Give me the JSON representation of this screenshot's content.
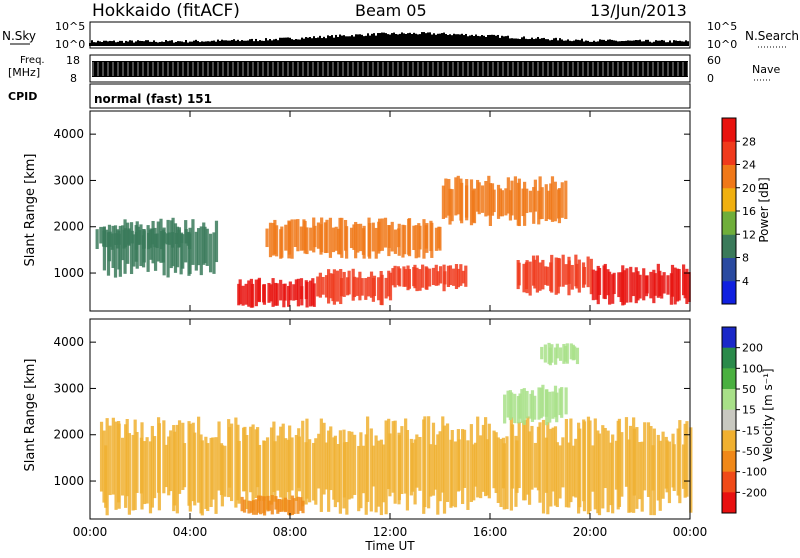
{
  "header": {
    "site": "Hokkaido (fitACF)",
    "beam": "Beam 05",
    "date": "13/Jun/2013"
  },
  "top_panels": {
    "nsky_label": "N.Sky",
    "nsky_ticks": [
      "10^5",
      "10^0"
    ],
    "nsearch_label": "N.Search",
    "nsearch_ticks": [
      "10^5",
      "10^0"
    ],
    "freq_label": "Freq.",
    "freq_unit": "[MHz]",
    "freq_ticks": [
      "18",
      "8"
    ],
    "nave_label": "Nave",
    "nave_ticks": [
      "60",
      "0"
    ],
    "cpid_label": "CPID",
    "cpid_text": "normal (fast) 151"
  },
  "chart_data": [
    {
      "type": "heatmap",
      "panel": "power",
      "ylabel": "Slant Range [km]",
      "yticks": [
        1000,
        2000,
        3000,
        4000
      ],
      "ylim": [
        180,
        4500
      ],
      "xticks": [
        "00:00",
        "04:00",
        "08:00",
        "12:00",
        "16:00",
        "20:00",
        "00:00"
      ],
      "xlim_hours": [
        0,
        24
      ],
      "colorbar": {
        "label": "Power [dB]",
        "ticks": [
          "4",
          "8",
          "12",
          "16",
          "20",
          "24",
          "28"
        ],
        "range": [
          0,
          30
        ],
        "colors": [
          "#1020e0",
          "#2a4aa0",
          "#3a7a5a",
          "#6fae3a",
          "#f0b010",
          "#f07818",
          "#f03a1c",
          "#e8120e"
        ]
      },
      "regions": [
        {
          "t": [
            5.8,
            9.0
          ],
          "r": [
            250,
            900
          ],
          "level": 28
        },
        {
          "t": [
            9.0,
            12.0
          ],
          "r": [
            300,
            1100
          ],
          "level": 26
        },
        {
          "t": [
            12.0,
            15.0
          ],
          "r": [
            600,
            1200
          ],
          "level": 24
        },
        {
          "t": [
            17.0,
            20.0
          ],
          "r": [
            500,
            1400
          ],
          "level": 26
        },
        {
          "t": [
            20.0,
            24.0
          ],
          "r": [
            300,
            1200
          ],
          "level": 28
        },
        {
          "t": [
            7.0,
            14.0
          ],
          "r": [
            1300,
            2200
          ],
          "level": 22
        },
        {
          "t": [
            14.0,
            19.0
          ],
          "r": [
            2000,
            3100
          ],
          "level": 22
        },
        {
          "t": [
            0.5,
            5.0
          ],
          "r": [
            900,
            2200
          ],
          "level": 10
        },
        {
          "t": [
            0.2,
            4.0
          ],
          "r": [
            1500,
            2000
          ],
          "level": 8
        }
      ]
    },
    {
      "type": "heatmap",
      "panel": "velocity",
      "ylabel": "Slant Range [km]",
      "yticks": [
        1000,
        2000,
        3000,
        4000
      ],
      "ylim": [
        180,
        4500
      ],
      "xticks": [
        "00:00",
        "04:00",
        "08:00",
        "12:00",
        "16:00",
        "20:00",
        "00:00"
      ],
      "xlabel": "Time UT",
      "xlim_hours": [
        0,
        24
      ],
      "colorbar": {
        "label": "Velocity [m s⁻¹]",
        "ticks": [
          "200",
          "100",
          "50",
          "15",
          "-15",
          "-50",
          "-100",
          "-200"
        ],
        "colors": [
          "#1a28c8",
          "#2a8a4a",
          "#4ab040",
          "#a8e088",
          "#c8c8c0",
          "#f0b030",
          "#f08818",
          "#f04a18",
          "#e81010"
        ]
      },
      "regions": [
        {
          "t": [
            0.3,
            24.0
          ],
          "r": [
            250,
            2400
          ],
          "level": "-15"
        },
        {
          "t": [
            6.0,
            8.5
          ],
          "r": [
            250,
            700
          ],
          "level": "-50"
        },
        {
          "t": [
            16.5,
            19.0
          ],
          "r": [
            2200,
            3100
          ],
          "level": "50"
        },
        {
          "t": [
            18.0,
            19.5
          ],
          "r": [
            3500,
            4000
          ],
          "level": "50"
        }
      ]
    }
  ]
}
